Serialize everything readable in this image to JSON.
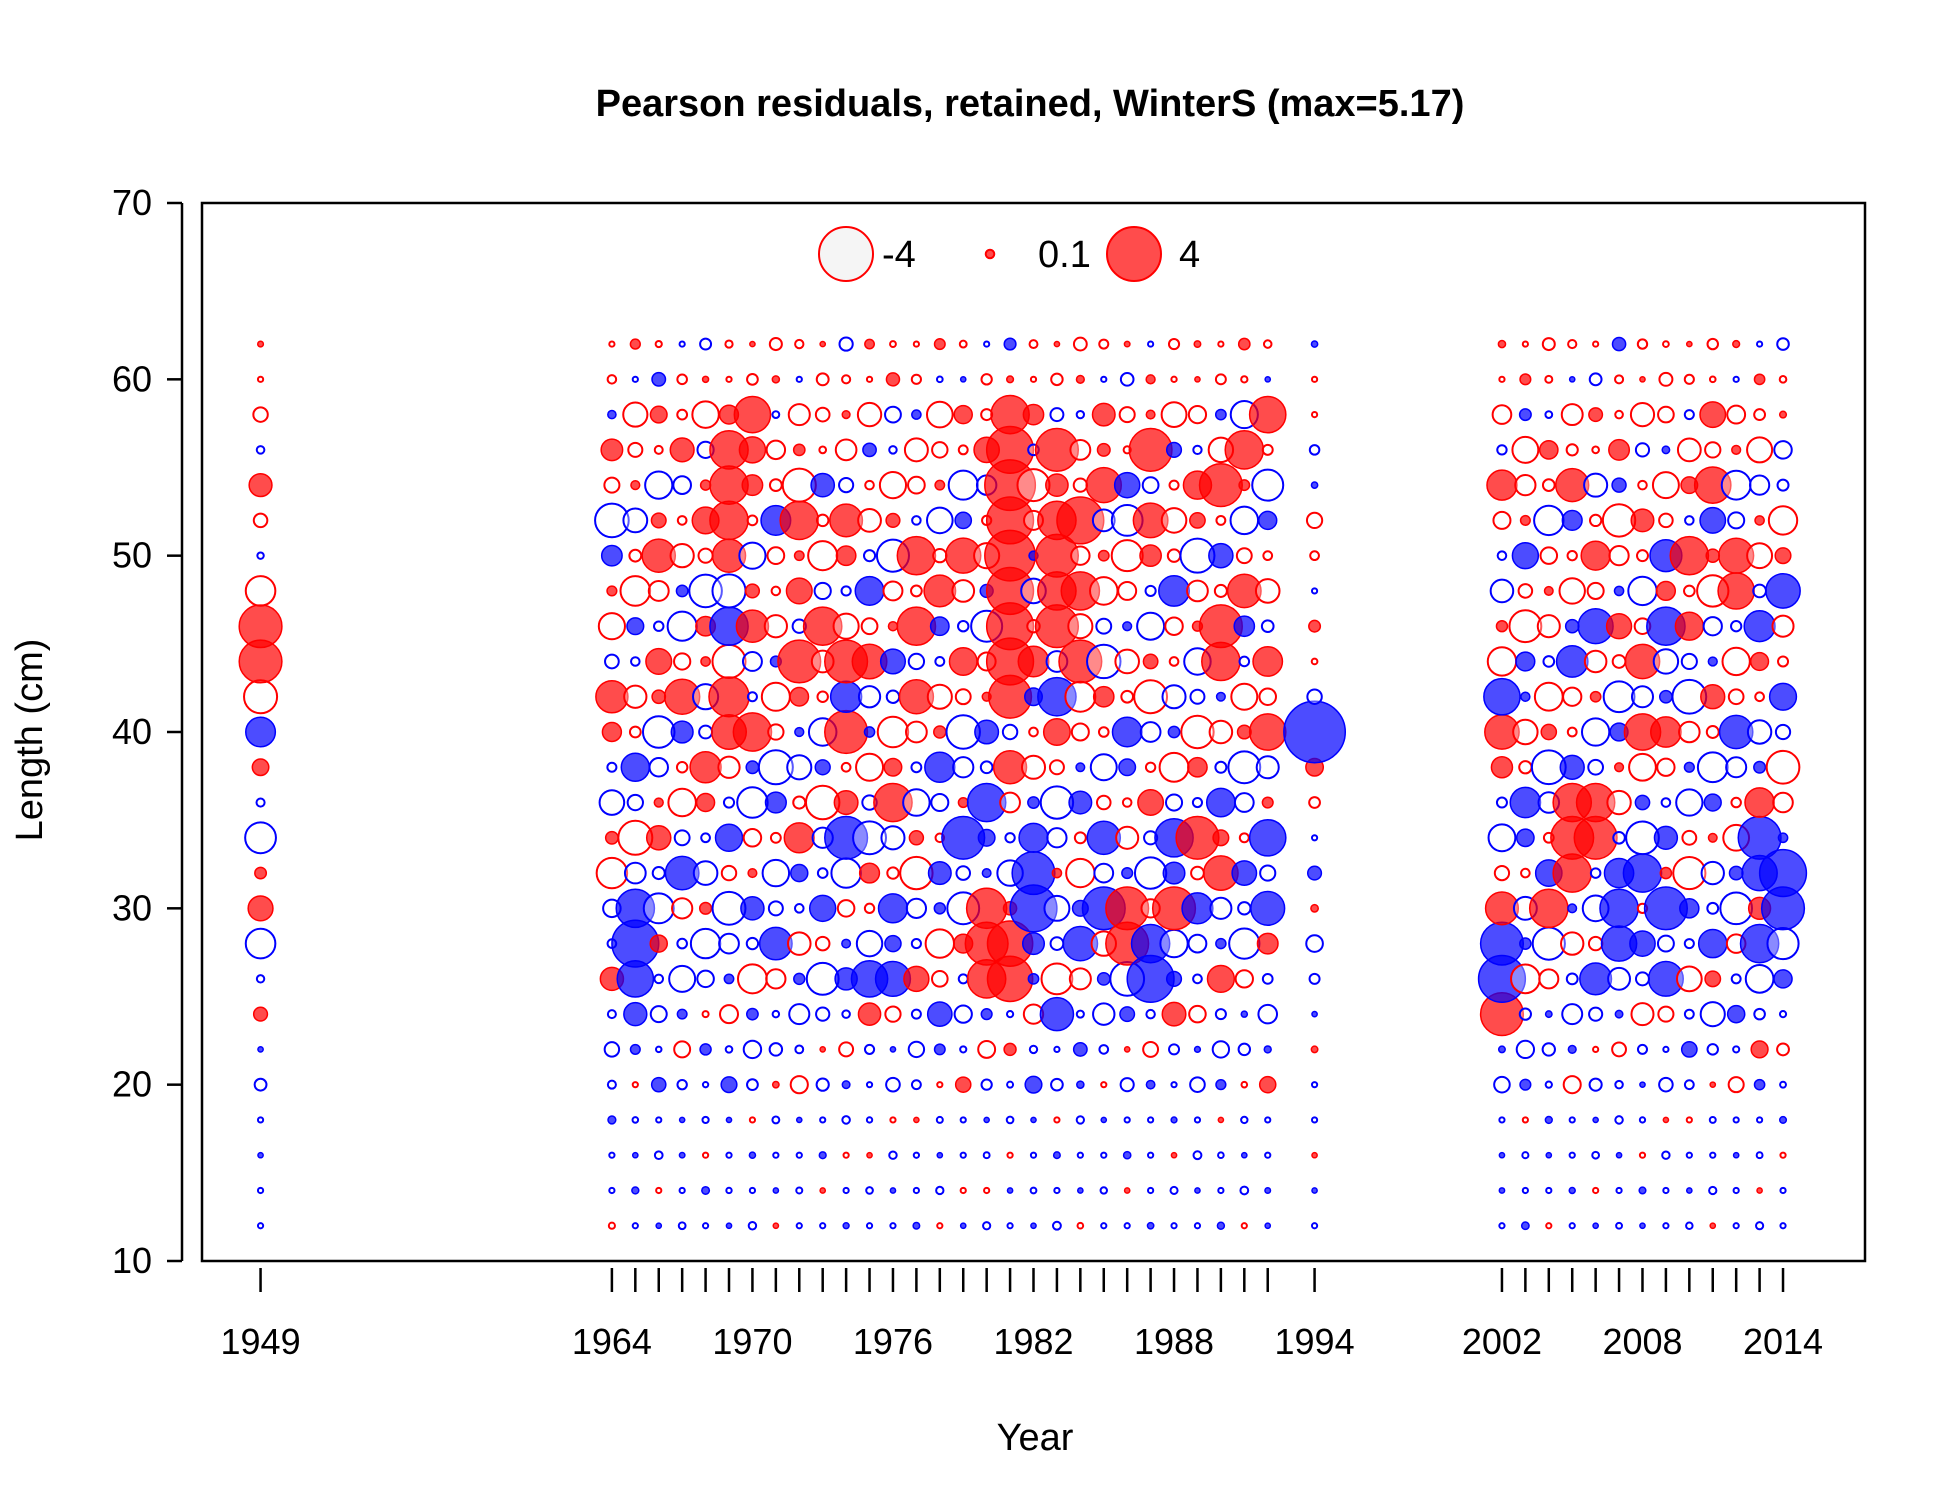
{
  "chart_data": {
    "type": "scatter",
    "title": "Pearson residuals, retained, WinterS (max=5.17)",
    "xlabel": "Year",
    "ylabel": "Length (cm)",
    "xlim": [
      1946.5,
      2017.5
    ],
    "ylim": [
      10,
      70
    ],
    "x_ticks_labeled": [
      1949,
      1964,
      1970,
      1976,
      1982,
      1988,
      1994,
      2002,
      2008,
      2014
    ],
    "y_ticks": [
      10,
      20,
      30,
      40,
      50,
      60,
      70
    ],
    "legend": {
      "position": "top-center",
      "entries": [
        {
          "label": "-4",
          "value": -4
        },
        {
          "label": "0.1",
          "value": 0.1
        },
        {
          "label": "4",
          "value": 4
        }
      ]
    },
    "colors": {
      "positive": "#ff0000",
      "negative": "#0000ff"
    },
    "years": [
      1949,
      1964,
      1965,
      1966,
      1967,
      1968,
      1969,
      1970,
      1971,
      1972,
      1973,
      1974,
      1975,
      1976,
      1977,
      1978,
      1979,
      1980,
      1981,
      1982,
      1983,
      1984,
      1985,
      1986,
      1987,
      1988,
      1989,
      1990,
      1991,
      1992,
      1994,
      2002,
      2003,
      2004,
      2005,
      2006,
      2007,
      2008,
      2009,
      2010,
      2011,
      2012,
      2013,
      2014
    ],
    "lengths": [
      12,
      14,
      16,
      18,
      20,
      22,
      24,
      26,
      28,
      30,
      32,
      34,
      36,
      38,
      40,
      42,
      44,
      46,
      48,
      50,
      52,
      54,
      56,
      58,
      60,
      62
    ],
    "highlights": [
      {
        "year": 1949,
        "len": 46,
        "r": 2.5
      },
      {
        "year": 1949,
        "len": 44,
        "r": 2.5
      },
      {
        "year": 1949,
        "len": 42,
        "r": 1.5
      },
      {
        "year": 1949,
        "len": 48,
        "r": 1.2
      },
      {
        "year": 1949,
        "len": 40,
        "r": -1.2
      },
      {
        "year": 1949,
        "len": 34,
        "r": -1.3
      },
      {
        "year": 1949,
        "len": 28,
        "r": -1.2
      },
      {
        "year": 1994,
        "len": 40,
        "r": -5.17
      },
      {
        "year": 1965,
        "len": 28,
        "r": -3.0
      },
      {
        "year": 1965,
        "len": 30,
        "r": -2.0
      },
      {
        "year": 1965,
        "len": 26,
        "r": -1.8
      },
      {
        "year": 1974,
        "len": 34,
        "r": -2.5
      },
      {
        "year": 1975,
        "len": 26,
        "r": -1.8
      },
      {
        "year": 1979,
        "len": 34,
        "r": -2.5
      },
      {
        "year": 1980,
        "len": 36,
        "r": -2.0
      },
      {
        "year": 1982,
        "len": 32,
        "r": -2.5
      },
      {
        "year": 1982,
        "len": 30,
        "r": -3.0
      },
      {
        "year": 1985,
        "len": 30,
        "r": -2.5
      },
      {
        "year": 1987,
        "len": 26,
        "r": -3.0
      },
      {
        "year": 1987,
        "len": 28,
        "r": -2.0
      },
      {
        "year": 1983,
        "len": 42,
        "r": -2.0
      },
      {
        "year": 1983,
        "len": 24,
        "r": -1.5
      },
      {
        "year": 1985,
        "len": 34,
        "r": -1.5
      },
      {
        "year": 1986,
        "len": 52,
        "r": -1.3
      },
      {
        "year": 1988,
        "len": 34,
        "r": -2.0
      },
      {
        "year": 1992,
        "len": 34,
        "r": -1.8
      },
      {
        "year": 1969,
        "len": 46,
        "r": -2.0
      },
      {
        "year": 1969,
        "len": 48,
        "r": -1.5
      },
      {
        "year": 2002,
        "len": 26,
        "r": -3.0
      },
      {
        "year": 2002,
        "len": 28,
        "r": -2.5
      },
      {
        "year": 2002,
        "len": 42,
        "r": -1.8
      },
      {
        "year": 2009,
        "len": 30,
        "r": -2.5
      },
      {
        "year": 2009,
        "len": 46,
        "r": -2.0
      },
      {
        "year": 2013,
        "len": 34,
        "r": -2.5
      },
      {
        "year": 2014,
        "len": 32,
        "r": -3.0
      },
      {
        "year": 2014,
        "len": 30,
        "r": -2.5
      },
      {
        "year": 2013,
        "len": 28,
        "r": -2.0
      },
      {
        "year": 2008,
        "len": 32,
        "r": -2.0
      },
      {
        "year": 2007,
        "len": 30,
        "r": -2.0
      },
      {
        "year": 1969,
        "len": 42,
        "r": 2.2
      },
      {
        "year": 1969,
        "len": 44,
        "r": 1.5
      },
      {
        "year": 1969,
        "len": 50,
        "r": 1.5
      },
      {
        "year": 1969,
        "len": 52,
        "r": 2.0
      },
      {
        "year": 1969,
        "len": 54,
        "r": 2.0
      },
      {
        "year": 1969,
        "len": 56,
        "r": 2.0
      },
      {
        "year": 1970,
        "len": 58,
        "r": 1.8
      },
      {
        "year": 1970,
        "len": 40,
        "r": 2.0
      },
      {
        "year": 1972,
        "len": 44,
        "r": 2.5
      },
      {
        "year": 1972,
        "len": 52,
        "r": 2.0
      },
      {
        "year": 1973,
        "len": 46,
        "r": 2.0
      },
      {
        "year": 1974,
        "len": 44,
        "r": 2.5
      },
      {
        "year": 1974,
        "len": 40,
        "r": 2.5
      },
      {
        "year": 1976,
        "len": 36,
        "r": 2.0
      },
      {
        "year": 1977,
        "len": 46,
        "r": 2.0
      },
      {
        "year": 1977,
        "len": 50,
        "r": 2.0
      },
      {
        "year": 1980,
        "len": 30,
        "r": 2.2
      },
      {
        "year": 1980,
        "len": 28,
        "r": 2.5
      },
      {
        "year": 1980,
        "len": 26,
        "r": 2.0
      },
      {
        "year": 1981,
        "len": 26,
        "r": 2.8
      },
      {
        "year": 1981,
        "len": 28,
        "r": 2.8
      },
      {
        "year": 1981,
        "len": 42,
        "r": 2.5
      },
      {
        "year": 1981,
        "len": 44,
        "r": 3.0
      },
      {
        "year": 1981,
        "len": 46,
        "r": 3.0
      },
      {
        "year": 1981,
        "len": 48,
        "r": 3.0
      },
      {
        "year": 1981,
        "len": 50,
        "r": 3.5
      },
      {
        "year": 1981,
        "len": 52,
        "r": 3.0
      },
      {
        "year": 1981,
        "len": 54,
        "r": 3.5
      },
      {
        "year": 1981,
        "len": 56,
        "r": 3.0
      },
      {
        "year": 1981,
        "len": 58,
        "r": 2.0
      },
      {
        "year": 1983,
        "len": 46,
        "r": 2.5
      },
      {
        "year": 1983,
        "len": 48,
        "r": 2.0
      },
      {
        "year": 1983,
        "len": 50,
        "r": 2.5
      },
      {
        "year": 1983,
        "len": 52,
        "r": 2.0
      },
      {
        "year": 1983,
        "len": 56,
        "r": 2.5
      },
      {
        "year": 1984,
        "len": 52,
        "r": 3.0
      },
      {
        "year": 1984,
        "len": 44,
        "r": 2.5
      },
      {
        "year": 1984,
        "len": 48,
        "r": 2.0
      },
      {
        "year": 1986,
        "len": 28,
        "r": 2.5
      },
      {
        "year": 1986,
        "len": 30,
        "r": 2.5
      },
      {
        "year": 1987,
        "len": 56,
        "r": 2.5
      },
      {
        "year": 1988,
        "len": 30,
        "r": 2.5
      },
      {
        "year": 1989,
        "len": 34,
        "r": 2.5
      },
      {
        "year": 1990,
        "len": 54,
        "r": 2.5
      },
      {
        "year": 1990,
        "len": 46,
        "r": 2.5
      },
      {
        "year": 1990,
        "len": 44,
        "r": 2.0
      },
      {
        "year": 1991,
        "len": 56,
        "r": 2.0
      },
      {
        "year": 1992,
        "len": 58,
        "r": 1.8
      },
      {
        "year": 1992,
        "len": 40,
        "r": 1.8
      },
      {
        "year": 2002,
        "len": 24,
        "r": 2.5
      },
      {
        "year": 2005,
        "len": 32,
        "r": 2.0
      },
      {
        "year": 2005,
        "len": 34,
        "r": 2.5
      },
      {
        "year": 2005,
        "len": 36,
        "r": 2.0
      },
      {
        "year": 2006,
        "len": 34,
        "r": 2.5
      },
      {
        "year": 2006,
        "len": 36,
        "r": 2.0
      },
      {
        "year": 2004,
        "len": 30,
        "r": 2.0
      },
      {
        "year": 2010,
        "len": 50,
        "r": 2.0
      },
      {
        "year": 2011,
        "len": 54,
        "r": 1.8
      },
      {
        "year": 2012,
        "len": 48,
        "r": 1.8
      },
      {
        "year": 2008,
        "len": 40,
        "r": 1.8
      }
    ]
  }
}
